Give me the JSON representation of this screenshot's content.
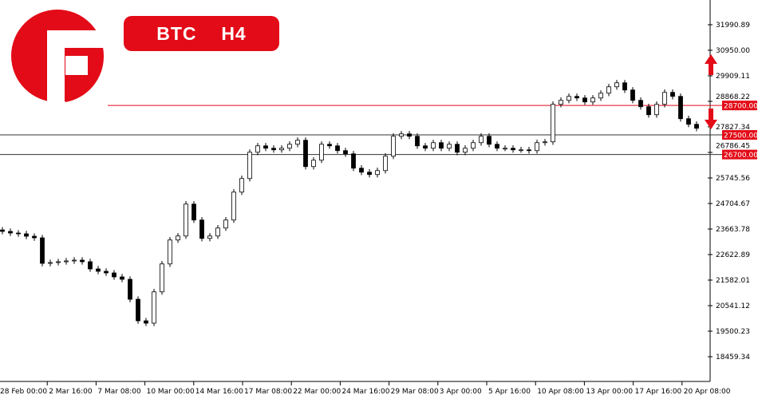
{
  "header": {
    "title": "BTC  H4",
    "logo_letter": "F"
  },
  "colors": {
    "brand": "#e30b17",
    "level": "#e30b17",
    "axis": "#000000"
  },
  "chart_data": {
    "type": "candlestick",
    "symbol": "BTC",
    "timeframe": "H4",
    "ylim": [
      18200,
      32400
    ],
    "y_ticks": [
      "31990.89",
      "30950.00",
      "29909.11",
      "28868.22",
      "27827.34",
      "26786.45",
      "25745.56",
      "24704.67",
      "23663.78",
      "22622.89",
      "21582.01",
      "20541.12",
      "19500.23",
      "18459.34"
    ],
    "x_ticks": [
      "28 Feb 00:00",
      "2 Mar 16:00",
      "7 Mar 08:00",
      "10 Mar 00:00",
      "14 Mar 16:00",
      "17 Mar 08:00",
      "22 Mar 00:00",
      "24 Mar 16:00",
      "29 Mar 08:00",
      "3 Apr 00:00",
      "5 Apr 16:00",
      "10 Apr 08:00",
      "13 Apr 00:00",
      "17 Apr 16:00",
      "20 Apr 08:00"
    ],
    "closes": [
      23566,
      23500,
      23468,
      23370,
      23305,
      22264,
      22297,
      22330,
      22362,
      22395,
      22330,
      22037,
      21940,
      21874,
      21712,
      21614,
      20800,
      19922,
      19825,
      21102,
      22240,
      23216,
      23379,
      24680,
      24030,
      23281,
      23379,
      23704,
      24030,
      25168,
      25721,
      26794,
      27054,
      26957,
      26892,
      26957,
      27119,
      27282,
      26209,
      26469,
      27119,
      27054,
      26859,
      26729,
      26144,
      25981,
      25884,
      26046,
      26632,
      27445,
      27542,
      27445,
      27054,
      26957,
      27184,
      26957,
      27119,
      26794,
      26957,
      27184,
      27445,
      27119,
      26957,
      26957,
      26892,
      26892,
      26859,
      27184,
      27217,
      28746,
      28909,
      29071,
      29006,
      28844,
      29006,
      29201,
      29461,
      29624,
      29331,
      28909,
      28649,
      28323,
      28746,
      29234,
      29071,
      28161,
      27933,
      27770
    ],
    "levels": [
      {
        "price": 28700,
        "label": "28700.00"
      },
      {
        "price": 27500,
        "label": "27500.00"
      },
      {
        "price": 26700,
        "label": "26700.00"
      }
    ],
    "annotations": [
      {
        "type": "arrow-up",
        "price": 29900
      },
      {
        "type": "arrow-down",
        "price": 27700
      }
    ]
  }
}
